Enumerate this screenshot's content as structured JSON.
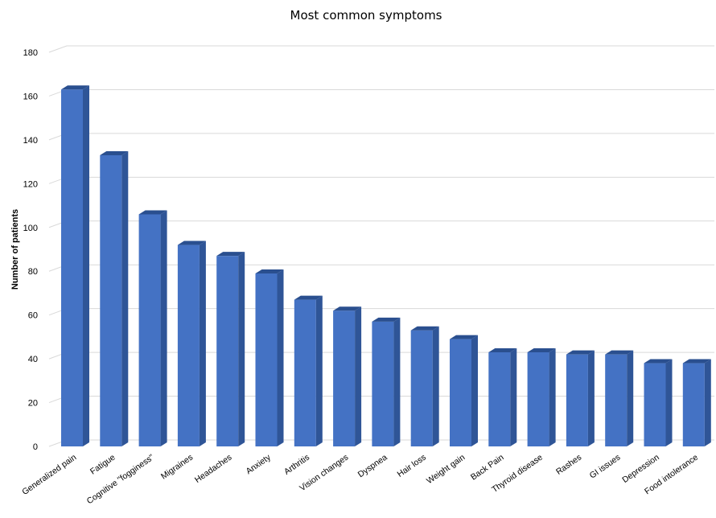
{
  "chart_data": {
    "type": "bar",
    "title": "Most common symptoms",
    "xlabel": "",
    "ylabel": "Number of patients",
    "ylim": [
      0,
      180
    ],
    "yticks": [
      0,
      20,
      40,
      60,
      80,
      100,
      120,
      140,
      160,
      180
    ],
    "grid": true,
    "style": "3d",
    "categories": [
      "Generalized pain",
      "Fatigue",
      "Cognitive \"fogginess\"",
      "Migraines",
      "Headaches",
      "Anxiety",
      "Arthritis",
      "Vision changes",
      "Dyspnea",
      "Hair loss",
      "Weight gain",
      "Back Pain",
      "Thyroid disease",
      "Rashes",
      "GI issues",
      "Depression",
      "Food intolerance"
    ],
    "values": [
      163,
      133,
      106,
      92,
      87,
      79,
      67,
      62,
      57,
      53,
      49,
      43,
      43,
      42,
      42,
      38,
      38
    ],
    "colors": {
      "bar_front": "#4472c4",
      "bar_side": "#2f5597",
      "bar_top": "#2a4f8f",
      "grid": "#d9d9d9"
    }
  }
}
